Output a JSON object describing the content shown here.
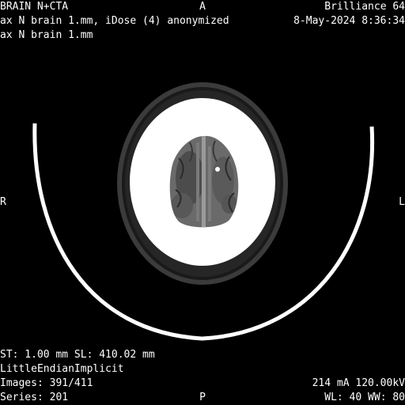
{
  "overlay": {
    "top_left": {
      "study": "BRAIN N+CTA",
      "series_desc": "ax N brain 1.mm, iDose (4) anonymized",
      "protocol": "ax N brain 1.mm"
    },
    "top_right": {
      "scanner": "Brilliance 64",
      "datetime": "8-May-2024 8:36:34"
    },
    "orientation": {
      "top": "A",
      "bottom": "P",
      "left": "R",
      "right": "L"
    },
    "bottom_left": {
      "slice_info": "ST: 1.00 mm SL: 410.02 mm",
      "transfer_syntax": "LittleEndianImplicit",
      "images": "Images: 391/411",
      "series": "Series: 201"
    },
    "bottom_right": {
      "exposure": "214 mA 120.00kV",
      "window": "WL: 40 WW: 80"
    }
  },
  "colors": {
    "background": "#000000",
    "text": "#ffffff",
    "bone": "#ffffff",
    "brain_gray": "#6e6e6e",
    "scalp": "#3a3a3a"
  }
}
